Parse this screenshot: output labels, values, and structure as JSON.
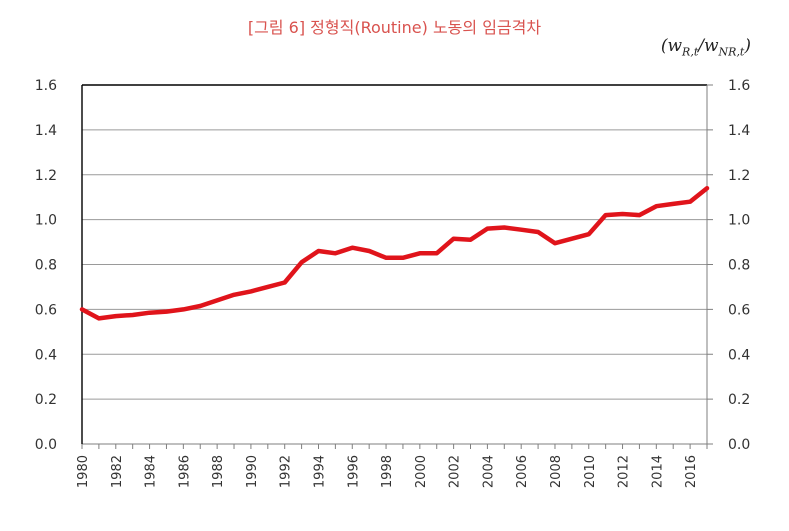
{
  "header": {
    "title": "[그림 6] 정형직(Routine) 노동의 임금격차",
    "unit_open": "(w",
    "unit_sub1": "R,t",
    "unit_slash": "/w",
    "unit_sub2": "NR,t",
    "unit_close": ")"
  },
  "chart_data": {
    "type": "line",
    "title": "[그림 6] 정형직(Routine) 노동의 임금격차",
    "xlabel": "",
    "ylabel": "",
    "ylim": [
      0,
      1.6
    ],
    "yticks": [
      "0.0",
      "0.2",
      "0.4",
      "0.6",
      "0.8",
      "1.0",
      "1.2",
      "1.4",
      "1.6"
    ],
    "xlim": [
      1980,
      2017
    ],
    "xticks": [
      "1980",
      "1982",
      "1984",
      "1986",
      "1988",
      "1990",
      "1992",
      "1994",
      "1996",
      "1998",
      "2000",
      "2002",
      "2004",
      "2006",
      "2008",
      "2010",
      "2012",
      "2014",
      "2016"
    ],
    "grid": true,
    "color": "#e0141b",
    "x": [
      1980,
      1981,
      1982,
      1983,
      1984,
      1985,
      1986,
      1987,
      1988,
      1989,
      1990,
      1991,
      1992,
      1993,
      1994,
      1995,
      1996,
      1997,
      1998,
      1999,
      2000,
      2001,
      2002,
      2003,
      2004,
      2005,
      2006,
      2007,
      2008,
      2009,
      2010,
      2011,
      2012,
      2013,
      2014,
      2015,
      2016,
      2017
    ],
    "series": [
      {
        "values": [
          0.6,
          0.56,
          0.57,
          0.575,
          0.585,
          0.59,
          0.6,
          0.615,
          0.64,
          0.665,
          0.68,
          0.7,
          0.72,
          0.81,
          0.86,
          0.85,
          0.875,
          0.86,
          0.83,
          0.83,
          0.85,
          0.85,
          0.915,
          0.91,
          0.96,
          0.965,
          0.955,
          0.945,
          0.895,
          0.915,
          0.935,
          1.02,
          1.025,
          1.02,
          1.06,
          1.07,
          1.08,
          1.14
        ]
      }
    ]
  }
}
